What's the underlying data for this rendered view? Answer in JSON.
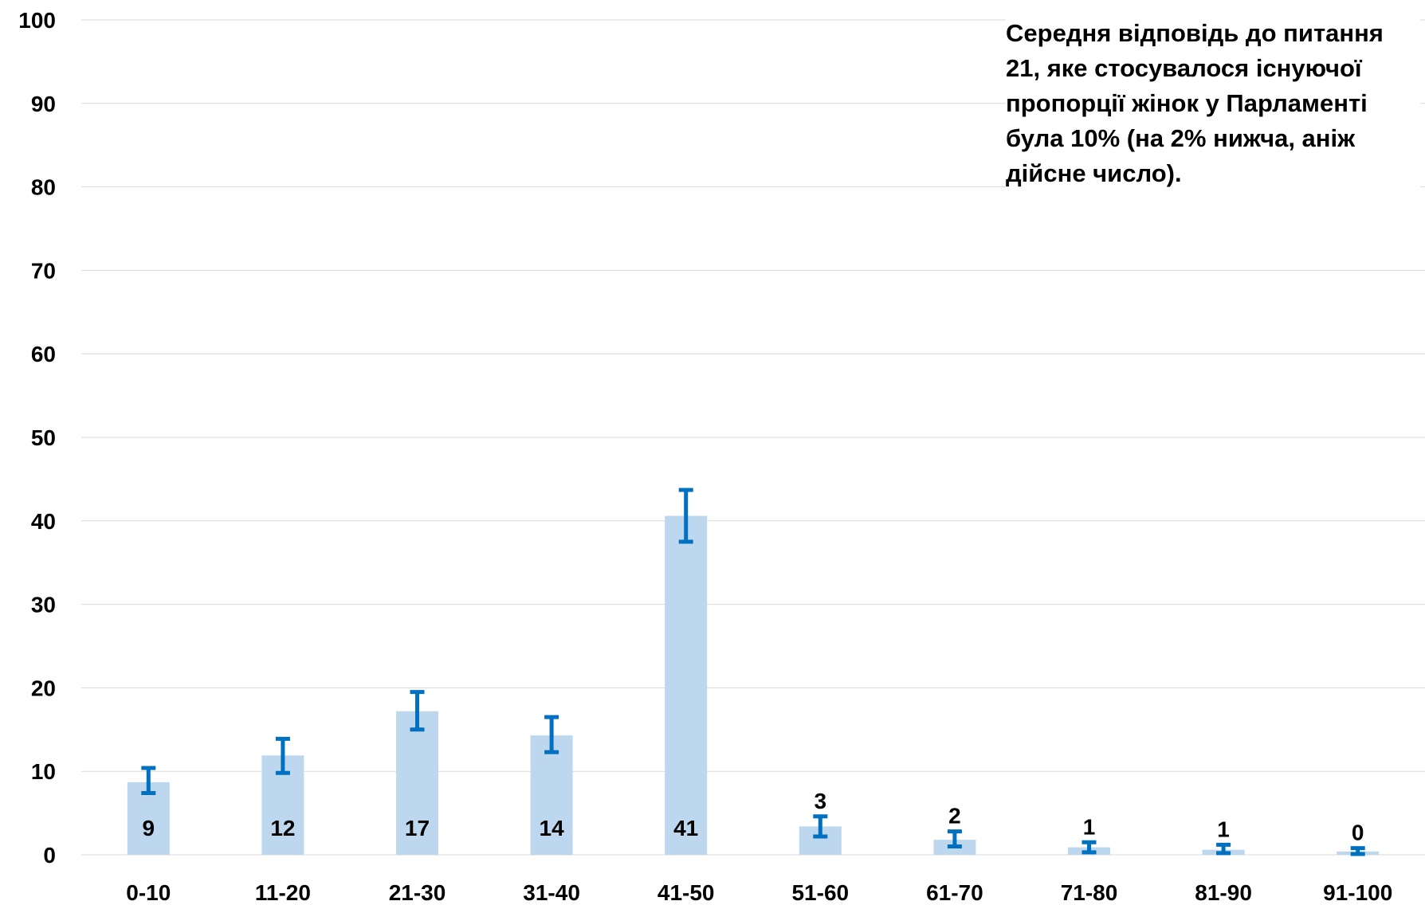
{
  "chart_data": {
    "type": "bar",
    "title": "",
    "xlabel": "",
    "ylabel": "",
    "ylim": [
      0,
      100
    ],
    "yticks": [
      0,
      10,
      20,
      30,
      40,
      50,
      60,
      70,
      80,
      90,
      100
    ],
    "grid": true,
    "categories": [
      "0-10",
      "11-20",
      "21-30",
      "31-40",
      "41-50",
      "51-60",
      "61-70",
      "71-80",
      "81-90",
      "91-100"
    ],
    "values": [
      8.7,
      11.9,
      17.2,
      14.3,
      40.6,
      3.4,
      1.8,
      0.9,
      0.6,
      0.4
    ],
    "error_low": [
      7.4,
      9.8,
      15.0,
      12.3,
      37.5,
      2.2,
      1.0,
      0.3,
      0.2,
      0.1
    ],
    "error_high": [
      10.4,
      13.9,
      19.5,
      16.5,
      43.7,
      4.6,
      2.8,
      1.5,
      1.2,
      0.8
    ],
    "data_labels": [
      "9",
      "12",
      "17",
      "14",
      "41",
      "3",
      "2",
      "1",
      "1",
      "0"
    ],
    "bar_color": "#bdd7ee",
    "error_color": "#0070c0",
    "annotation": "Середня відповідь до питання 21, яке стосувалося існуючої пропорції жінок у Парламенті була 10% (на 2% нижча, аніж дійсне число)."
  }
}
